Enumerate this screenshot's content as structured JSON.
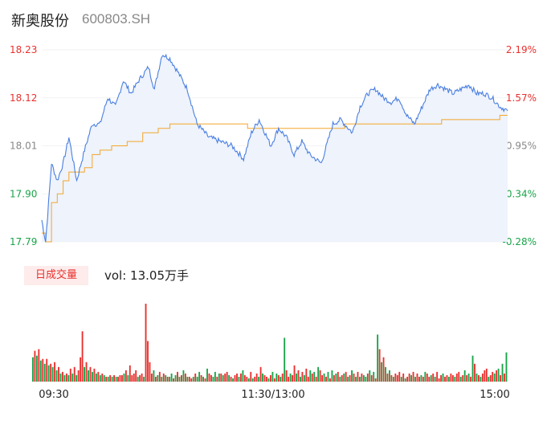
{
  "header": {
    "name": "新奥股份",
    "code": "600803.SH"
  },
  "volume_panel": {
    "badge": "日成交量",
    "summary": "vol: 13.05万手"
  },
  "colors": {
    "up": "#e8312f",
    "down": "#1aa34a",
    "price_line": "#4a7fe0",
    "avg_line": "#f3a52a",
    "area": "#eef3fc"
  },
  "chart_data": [
    {
      "type": "line",
      "name": "intraday-price",
      "y_left_ticks": [
        "18.23",
        "18.12",
        "18.01",
        "17.90",
        "17.79"
      ],
      "y_right_ticks": [
        "2.19%",
        "1.57%",
        "0.95%",
        "0.34%",
        "-0.28%"
      ],
      "ylim": [
        17.79,
        18.23
      ],
      "x_ticks": [
        "09:30",
        "11:30/13:00",
        "15:00"
      ],
      "price_keypoints": [
        [
          0,
          17.84
        ],
        [
          2,
          17.79
        ],
        [
          5,
          17.97
        ],
        [
          8,
          17.93
        ],
        [
          11,
          17.97
        ],
        [
          14,
          18.03
        ],
        [
          18,
          17.93
        ],
        [
          22,
          18.0
        ],
        [
          26,
          18.06
        ],
        [
          30,
          18.06
        ],
        [
          34,
          18.12
        ],
        [
          38,
          18.1
        ],
        [
          42,
          18.16
        ],
        [
          46,
          18.13
        ],
        [
          50,
          18.16
        ],
        [
          55,
          18.19
        ],
        [
          58,
          18.14
        ],
        [
          62,
          18.22
        ],
        [
          66,
          18.21
        ],
        [
          70,
          18.18
        ],
        [
          75,
          18.14
        ],
        [
          80,
          18.06
        ],
        [
          86,
          18.03
        ],
        [
          92,
          18.02
        ],
        [
          98,
          18.01
        ],
        [
          104,
          17.98
        ],
        [
          108,
          18.04
        ],
        [
          112,
          18.07
        ],
        [
          118,
          18.01
        ],
        [
          122,
          18.05
        ],
        [
          126,
          18.03
        ],
        [
          130,
          17.99
        ],
        [
          134,
          18.02
        ],
        [
          138,
          17.99
        ],
        [
          144,
          17.97
        ],
        [
          150,
          18.06
        ],
        [
          154,
          18.07
        ],
        [
          156,
          18.06
        ],
        [
          160,
          18.04
        ],
        [
          164,
          18.1
        ],
        [
          168,
          18.13
        ],
        [
          172,
          18.14
        ],
        [
          176,
          18.12
        ],
        [
          180,
          18.11
        ],
        [
          184,
          18.12
        ],
        [
          188,
          18.08
        ],
        [
          192,
          18.06
        ],
        [
          196,
          18.1
        ],
        [
          200,
          18.14
        ],
        [
          204,
          18.15
        ],
        [
          208,
          18.14
        ],
        [
          212,
          18.13
        ],
        [
          216,
          18.14
        ],
        [
          220,
          18.15
        ],
        [
          224,
          18.13
        ],
        [
          228,
          18.13
        ],
        [
          232,
          18.12
        ],
        [
          236,
          18.1
        ],
        [
          240,
          18.09
        ]
      ],
      "avg_keypoints": [
        [
          0,
          17.81
        ],
        [
          2,
          17.79
        ],
        [
          5,
          17.88
        ],
        [
          8,
          17.9
        ],
        [
          11,
          17.93
        ],
        [
          14,
          17.95
        ],
        [
          18,
          17.95
        ],
        [
          22,
          17.96
        ],
        [
          26,
          17.99
        ],
        [
          30,
          18.0
        ],
        [
          36,
          18.01
        ],
        [
          44,
          18.02
        ],
        [
          52,
          18.04
        ],
        [
          60,
          18.05
        ],
        [
          66,
          18.06
        ],
        [
          76,
          18.06
        ],
        [
          86,
          18.06
        ],
        [
          96,
          18.06
        ],
        [
          106,
          18.05
        ],
        [
          116,
          18.05
        ],
        [
          126,
          18.05
        ],
        [
          136,
          18.05
        ],
        [
          146,
          18.05
        ],
        [
          156,
          18.06
        ],
        [
          166,
          18.06
        ],
        [
          176,
          18.06
        ],
        [
          186,
          18.06
        ],
        [
          196,
          18.06
        ],
        [
          206,
          18.07
        ],
        [
          216,
          18.07
        ],
        [
          226,
          18.07
        ],
        [
          236,
          18.08
        ],
        [
          240,
          18.08
        ]
      ]
    },
    {
      "type": "bar",
      "name": "volume",
      "x_range": [
        0,
        240
      ],
      "values": [
        30,
        38,
        32,
        40,
        26,
        28,
        22,
        28,
        20,
        22,
        18,
        24,
        14,
        18,
        10,
        12,
        8,
        10,
        8,
        16,
        10,
        18,
        8,
        14,
        30,
        62,
        18,
        24,
        14,
        18,
        12,
        16,
        10,
        12,
        8,
        10,
        8,
        6,
        6,
        8,
        6,
        8,
        6,
        6,
        8,
        8,
        10,
        14,
        8,
        20,
        8,
        10,
        14,
        6,
        8,
        10,
        6,
        96,
        50,
        24,
        10,
        14,
        6,
        8,
        12,
        6,
        10,
        8,
        6,
        6,
        10,
        4,
        8,
        12,
        6,
        8,
        14,
        10,
        6,
        6,
        4,
        6,
        10,
        6,
        12,
        8,
        6,
        4,
        16,
        10,
        8,
        6,
        12,
        6,
        10,
        10,
        8,
        10,
        12,
        8,
        6,
        4,
        8,
        10,
        6,
        10,
        14,
        8,
        6,
        4,
        12,
        4,
        6,
        10,
        6,
        18,
        10,
        8,
        6,
        4,
        8,
        12,
        4,
        10,
        8,
        6,
        10,
        54,
        14,
        6,
        10,
        8,
        20,
        10,
        14,
        6,
        12,
        8,
        16,
        6,
        14,
        10,
        12,
        6,
        18,
        14,
        8,
        10,
        6,
        12,
        4,
        14,
        8,
        10,
        12,
        6,
        8,
        10,
        12,
        6,
        8,
        14,
        10,
        6,
        12,
        6,
        10,
        8,
        6,
        10,
        14,
        8,
        12,
        4,
        58,
        40,
        24,
        30,
        18,
        10,
        14,
        8,
        6,
        10,
        8,
        12,
        6,
        10,
        4,
        6,
        10,
        8,
        12,
        6,
        10,
        6,
        8,
        6,
        12,
        10,
        6,
        8,
        10,
        6,
        12,
        4,
        8,
        10,
        6,
        8,
        6,
        10,
        8,
        6,
        10,
        12,
        6,
        8,
        14,
        8,
        10,
        6,
        32,
        22,
        10,
        8,
        6,
        10,
        14,
        16,
        6,
        8,
        12,
        10,
        14,
        16,
        8,
        22,
        10,
        36
      ],
      "directions": [
        "down",
        "up",
        "down",
        "up",
        "down",
        "up",
        "down",
        "up",
        "down",
        "up",
        "down",
        "up",
        "down",
        "up",
        "down",
        "up",
        "down",
        "up",
        "down",
        "up",
        "down",
        "up",
        "down",
        "up",
        "up",
        "up",
        "down",
        "up",
        "down",
        "up",
        "down",
        "up",
        "down",
        "up",
        "down",
        "up",
        "down",
        "up",
        "down",
        "up",
        "down",
        "up",
        "down",
        "up",
        "up",
        "up",
        "down",
        "up",
        "down",
        "up",
        "up",
        "up",
        "up",
        "down",
        "up",
        "up",
        "down",
        "up",
        "up",
        "up",
        "up",
        "down",
        "up",
        "down",
        "up",
        "down",
        "up",
        "down",
        "up",
        "down",
        "down",
        "up",
        "down",
        "up",
        "down",
        "up",
        "down",
        "up",
        "down",
        "up",
        "up",
        "down",
        "up",
        "down",
        "down",
        "up",
        "down",
        "up",
        "down",
        "up",
        "up",
        "down",
        "down",
        "up",
        "down",
        "up",
        "down",
        "up",
        "up",
        "down",
        "up",
        "down",
        "up",
        "up",
        "down",
        "up",
        "down",
        "up",
        "up",
        "down",
        "up",
        "down",
        "up",
        "up",
        "down",
        "up",
        "down",
        "up",
        "up",
        "down",
        "up",
        "down",
        "up",
        "down",
        "up",
        "down",
        "up",
        "down",
        "up",
        "up",
        "down",
        "up",
        "up",
        "down",
        "up",
        "down",
        "up",
        "down",
        "up",
        "up",
        "down",
        "up",
        "down",
        "up",
        "down",
        "up",
        "up",
        "down",
        "up",
        "down",
        "up",
        "down",
        "up",
        "down",
        "up",
        "down",
        "up",
        "down",
        "up",
        "down",
        "up",
        "down",
        "up",
        "down",
        "up",
        "down",
        "up",
        "down",
        "down",
        "up",
        "down",
        "up",
        "down",
        "up",
        "down",
        "up",
        "down",
        "up",
        "down",
        "up",
        "down",
        "up",
        "down",
        "up",
        "up",
        "up",
        "down",
        "up",
        "down",
        "up",
        "up",
        "down",
        "up",
        "down",
        "up",
        "up",
        "down",
        "up",
        "down",
        "up",
        "up",
        "down",
        "up",
        "down",
        "up",
        "up",
        "up",
        "down",
        "up",
        "up",
        "down",
        "up",
        "up",
        "down",
        "up",
        "up",
        "down",
        "up",
        "down",
        "up",
        "down",
        "up",
        "down",
        "up",
        "down",
        "up",
        "down",
        "up",
        "up",
        "up",
        "down",
        "up",
        "up",
        "down",
        "up",
        "down",
        "up",
        "down",
        "up",
        "down"
      ]
    }
  ]
}
